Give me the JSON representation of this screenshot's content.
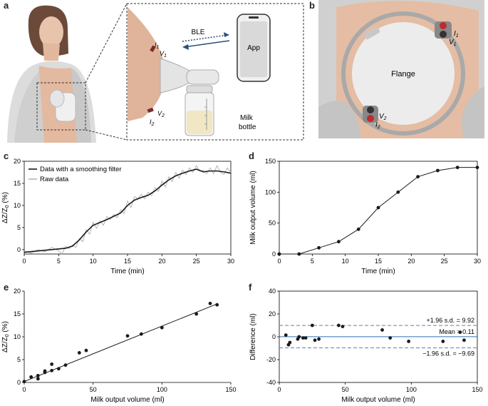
{
  "panel_labels": {
    "a": "a",
    "b": "b",
    "c": "c",
    "d": "d",
    "e": "e",
    "f": "f"
  },
  "panel_a": {
    "ble": "BLE",
    "app": "App",
    "milk": "Milk",
    "bottle": "bottle",
    "i1": "I",
    "i1sub": "1",
    "v1": "V",
    "v1sub": "1",
    "v2": "V",
    "v2sub": "2",
    "i2": "I",
    "i2sub": "2"
  },
  "panel_b": {
    "flange": "Flange",
    "i1": "I",
    "i1sub": "1",
    "v1": "V",
    "v1sub": "1",
    "v2": "V",
    "v2sub": "2",
    "i2": "I",
    "i2sub": "2"
  },
  "colors": {
    "skin": "#e3b9a0",
    "shirt": "#d4d4d4",
    "line": "#1a1a1a",
    "raw": "#b5b5b5",
    "blue": "#2a6fb0",
    "dash": "#5b84b1"
  },
  "chart_data": [
    {
      "id": "c",
      "type": "line",
      "xlabel": "Time (min)",
      "ylabel": "ΔZ/Z0 (%)",
      "xlim": [
        0,
        30
      ],
      "ylim": [
        -1,
        20
      ],
      "xticks": [
        0,
        5,
        10,
        15,
        20,
        25,
        30
      ],
      "yticks": [
        0,
        5,
        10,
        15,
        20
      ],
      "legend_position": "top-left",
      "series": [
        {
          "name": "Data with a smoothing filter",
          "x": [
            0,
            2,
            4,
            6,
            7,
            8,
            9,
            10,
            12,
            14,
            15,
            16,
            17,
            18,
            19,
            20,
            21,
            22,
            23,
            24,
            25,
            26,
            27,
            28,
            29,
            30
          ],
          "values": [
            -0.6,
            -0.3,
            0,
            0.3,
            0.8,
            2.2,
            4,
            5.5,
            6.8,
            8.3,
            10,
            11.2,
            11.8,
            12.3,
            13.3,
            14.6,
            15.8,
            16.7,
            17.3,
            17.8,
            18.2,
            17.6,
            17.8,
            17.8,
            17.6,
            17.3
          ]
        },
        {
          "name": "Raw data",
          "x": [
            0,
            1,
            2,
            3,
            4,
            5,
            5.5,
            6,
            6.5,
            7,
            7.5,
            8,
            8.5,
            9,
            9.5,
            10,
            10.5,
            11,
            11.5,
            12,
            12.5,
            13,
            13.5,
            14,
            14.5,
            15,
            15.5,
            16,
            16.5,
            17,
            17.5,
            18,
            18.5,
            19,
            19.5,
            20,
            20.5,
            21,
            21.5,
            22,
            22.5,
            23,
            23.5,
            24,
            24.5,
            25,
            25.5,
            26,
            26.5,
            27,
            27.5,
            28,
            28.5,
            29,
            29.5,
            30
          ],
          "values": [
            -0.3,
            -0.8,
            0,
            -0.5,
            0.5,
            -0.3,
            -1,
            0.8,
            0.2,
            1,
            0.5,
            2.5,
            1.8,
            4.5,
            3.5,
            6.2,
            4.8,
            6.5,
            5.5,
            7.5,
            6.8,
            8,
            7.2,
            9,
            8.2,
            11,
            9.5,
            12,
            11.5,
            12.5,
            11.5,
            13,
            12.2,
            14,
            13.2,
            15.5,
            14.2,
            16.5,
            15.4,
            17.5,
            16.2,
            18,
            17,
            18.5,
            17.5,
            19,
            17.8,
            18,
            17.2,
            18.5,
            17.2,
            19,
            17.5,
            17,
            18.5,
            17.5
          ]
        }
      ]
    },
    {
      "id": "d",
      "type": "line",
      "xlabel": "Time (min)",
      "ylabel": "Milk output volume (ml)",
      "xlim": [
        0,
        30
      ],
      "ylim": [
        0,
        150
      ],
      "xticks": [
        0,
        5,
        10,
        15,
        20,
        25,
        30
      ],
      "yticks": [
        0,
        50,
        100,
        150
      ],
      "x": [
        0,
        3,
        6,
        9,
        12,
        15,
        18,
        21,
        24,
        27,
        30
      ],
      "values": [
        0,
        0,
        10,
        20,
        40,
        75,
        100,
        125,
        135,
        140,
        140
      ]
    },
    {
      "id": "e",
      "type": "scatter",
      "xlabel": "Milk output volume (ml)",
      "ylabel": "ΔZ/Z0 (%)",
      "xlim": [
        0,
        150
      ],
      "ylim": [
        0,
        20
      ],
      "xticks": [
        0,
        50,
        100,
        150
      ],
      "yticks": [
        0,
        5,
        10,
        15,
        20
      ],
      "x": [
        0,
        5,
        10,
        10,
        15,
        15,
        20,
        20,
        25,
        30,
        40,
        45,
        75,
        85,
        100,
        125,
        135,
        140
      ],
      "values": [
        0.2,
        1.2,
        0.8,
        1.5,
        2.2,
        2.5,
        2.6,
        4,
        3,
        3.8,
        6.5,
        7,
        10.2,
        10.6,
        12,
        15,
        17.3,
        17
      ],
      "fit_x": [
        0,
        140
      ],
      "fit_y": [
        0.2,
        17.2
      ]
    },
    {
      "id": "f",
      "type": "scatter",
      "xlabel": "Milk output volume (ml)",
      "ylabel": "Difference (ml)",
      "xlim": [
        0,
        150
      ],
      "ylim": [
        -40,
        40
      ],
      "xticks": [
        0,
        50,
        100,
        150
      ],
      "yticks": [
        -40,
        -20,
        0,
        20,
        40
      ],
      "x": [
        5,
        7,
        8,
        14,
        15,
        18,
        20,
        25,
        27,
        30,
        45,
        48,
        78,
        84,
        98,
        124,
        137,
        140
      ],
      "values": [
        1.5,
        -7,
        -5,
        -2,
        0,
        -1,
        -1,
        10,
        -3,
        -2,
        10,
        9,
        6,
        -1,
        -4,
        -4,
        4,
        -3
      ],
      "mean": 0.11,
      "upper": 9.92,
      "lower": -9.69,
      "upper_label": "+1.96 s.d. = 9.92",
      "mean_label": "Mean = 0.11",
      "lower_label": "−1.96 s.d. = −9.69"
    }
  ]
}
